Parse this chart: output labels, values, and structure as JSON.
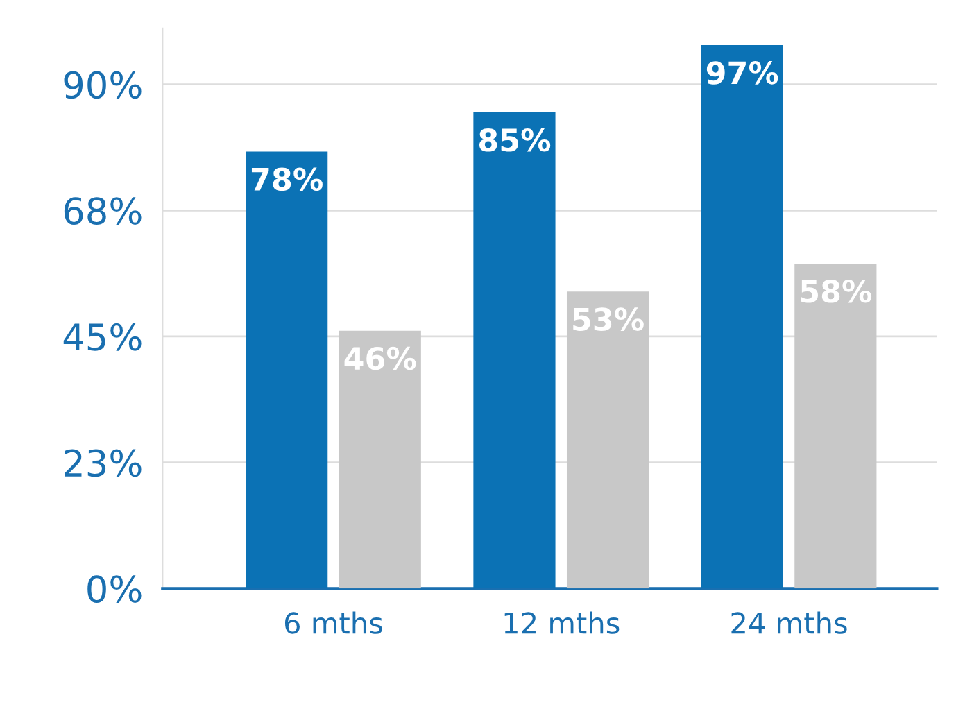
{
  "chart_data": {
    "type": "bar",
    "categories": [
      "6 mths",
      "12 mths",
      "24 mths"
    ],
    "series": [
      {
        "color": "#0b72b5",
        "values": [
          78,
          85,
          97
        ],
        "value_labels": [
          "78%",
          "85%",
          "97%"
        ]
      },
      {
        "color": "#c8c8c8",
        "values": [
          46,
          53,
          58
        ],
        "value_labels": [
          "46%",
          "53%",
          "58%"
        ]
      }
    ],
    "ylim": [
      0,
      100
    ],
    "yticks": [
      {
        "value": 0,
        "label": "0%"
      },
      {
        "value": 22.5,
        "label": "23%"
      },
      {
        "value": 45,
        "label": "45%"
      },
      {
        "value": 67.5,
        "label": "68%"
      },
      {
        "value": 90,
        "label": "90%"
      }
    ],
    "grid": "y"
  }
}
